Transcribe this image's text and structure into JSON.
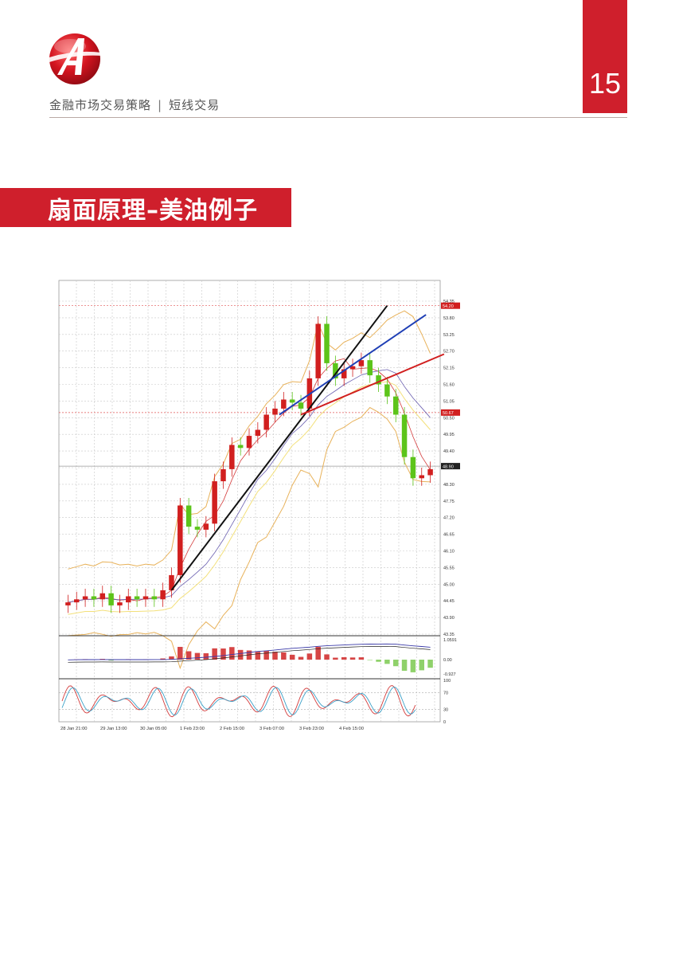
{
  "header": {
    "title": "金融市场交易策略",
    "separator": "|",
    "subtitle": "短线交易",
    "page_number": "15"
  },
  "section": {
    "title": "扇面原理–美油例子"
  },
  "colors": {
    "brand_red": "#cf1f2c",
    "candle_up": "#d11f1f",
    "candle_down": "#5cc41a"
  },
  "chart_data": {
    "type": "candlestick",
    "instrument_note": "",
    "y_ticks": [
      "54.35",
      "53.80",
      "53.25",
      "52.70",
      "52.15",
      "51.60",
      "51.05",
      "50.50",
      "49.95",
      "49.40",
      "48.85",
      "48.30",
      "47.75",
      "47.20",
      "46.65",
      "46.10",
      "45.55",
      "45.00",
      "44.45",
      "43.90",
      "43.35"
    ],
    "ylim": [
      43.35,
      54.35
    ],
    "price_labels": {
      "high": "54.20",
      "mid": "50.67",
      "current": "48.90"
    },
    "x_ticks": [
      "28 Jan 21:00",
      "29 Jan 13:00",
      "30 Jan 05:00",
      "1 Feb 23:00",
      "2 Feb 15:00",
      "3 Feb 07:00",
      "3 Feb 23:00",
      "4 Feb 15:00"
    ],
    "close": [
      44.4,
      44.5,
      44.6,
      44.5,
      44.7,
      44.3,
      44.4,
      44.6,
      44.5,
      44.6,
      44.5,
      44.8,
      45.3,
      47.6,
      46.9,
      46.8,
      47.0,
      48.4,
      48.8,
      49.6,
      49.5,
      49.9,
      50.1,
      50.6,
      50.8,
      51.1,
      51.0,
      50.8,
      51.8,
      53.6,
      52.3,
      51.8,
      52.1,
      52.2,
      52.4,
      51.9,
      51.6,
      51.2,
      50.6,
      49.2,
      48.5,
      48.6,
      48.8
    ],
    "fan_lines": [
      {
        "color": "black",
        "from": [
          12,
          44.8
        ],
        "to": [
          37,
          54.2
        ]
      },
      {
        "color": "blue",
        "from": [
          24.5,
          50.6
        ],
        "to": [
          41.5,
          53.9
        ]
      },
      {
        "color": "red",
        "from": [
          27,
          50.6
        ],
        "to": [
          43.6,
          52.6
        ]
      }
    ],
    "macd": {
      "ticks": [
        "1.0591",
        "0.00",
        "-0.927"
      ]
    },
    "stochastic": {
      "ticks": [
        "100",
        "70",
        "30",
        "0"
      ]
    }
  }
}
